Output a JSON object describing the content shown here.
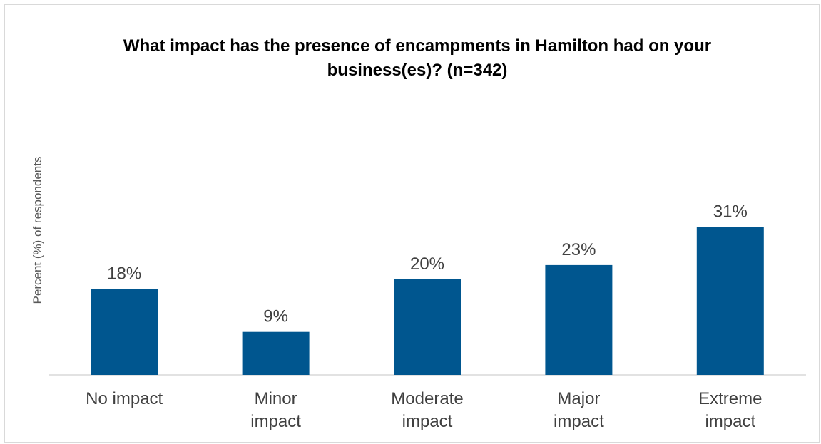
{
  "chart_data": {
    "type": "bar",
    "title_lines": [
      "What impact has the presence of encampments in Hamilton had on your",
      "business(es)? (n=342)"
    ],
    "ylabel": "Percent (%) of respondents",
    "xlabel": "",
    "categories": [
      [
        "No impact"
      ],
      [
        "Minor",
        "impact"
      ],
      [
        "Moderate",
        "impact"
      ],
      [
        "Major",
        "impact"
      ],
      [
        "Extreme",
        "impact"
      ]
    ],
    "values": [
      18,
      9,
      20,
      23,
      31
    ],
    "data_labels": [
      "18%",
      "9%",
      "20%",
      "23%",
      "31%"
    ],
    "value_unit": "%",
    "ylim": [
      0,
      40
    ],
    "grid": false,
    "legend": "none",
    "bar_color": "#00568F",
    "axis_color": "#d9d9d9"
  }
}
